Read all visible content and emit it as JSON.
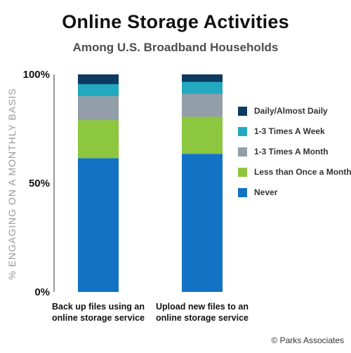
{
  "header": {
    "title": "Online Storage Activities",
    "subtitle": "Among U.S. Broadband Households"
  },
  "footer": {
    "copyright": "© Parks Associates"
  },
  "chart_data": {
    "type": "bar",
    "stacked": true,
    "title": "Online Storage Activities",
    "subtitle": "Among U.S. Broadband Households",
    "xlabel": "",
    "ylabel": "% ENGAGING ON A MONTHLY BASIS",
    "ylim": [
      0,
      100
    ],
    "yticks": [
      {
        "value": 0,
        "label": "0%"
      },
      {
        "value": 50,
        "label": "50%"
      },
      {
        "value": 100,
        "label": "100%"
      }
    ],
    "categories": [
      [
        "Back up files using an",
        "online storage service"
      ],
      [
        "Upload new files to an",
        "online storage service"
      ]
    ],
    "series": [
      {
        "name": "Never",
        "color": "#1273c4",
        "values": [
          61.5,
          63.5
        ]
      },
      {
        "name": "Less than Once a Month",
        "color": "#8dc63f",
        "values": [
          17.5,
          17
        ]
      },
      {
        "name": "1-3 Times A Month",
        "color": "#929ea8",
        "values": [
          11,
          10.5
        ]
      },
      {
        "name": "1-3 Times A Week",
        "color": "#22a9bf",
        "values": [
          5.5,
          5.5
        ]
      },
      {
        "name": "Daily/Almost Daily",
        "color": "#0d3a63",
        "values": [
          4.5,
          3.5
        ]
      }
    ],
    "legend_position": "right",
    "grid": false
  }
}
